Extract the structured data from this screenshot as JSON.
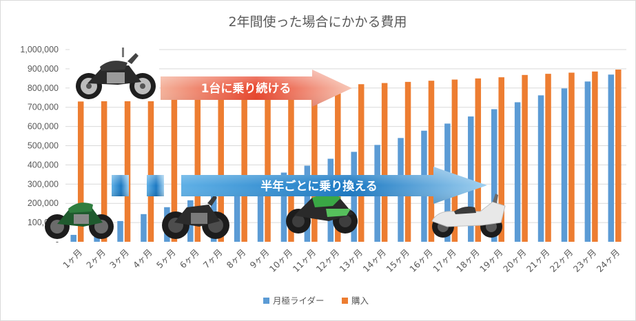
{
  "chart_data": {
    "type": "bar",
    "title": "2年間使った場合にかかる費用",
    "categories": [
      "1ヶ月",
      "2ヶ月",
      "3ヶ月",
      "4ヶ月",
      "5ヶ月",
      "6ヶ月",
      "7ヶ月",
      "8ヶ月",
      "9ヶ月",
      "10ヶ月",
      "11ヶ月",
      "12ヶ月",
      "13ヶ月",
      "14ヶ月",
      "15ヶ月",
      "16ヶ月",
      "17ヶ月",
      "18ヶ月",
      "19ヶ月",
      "20ヶ月",
      "21ヶ月",
      "22ヶ月",
      "23ヶ月",
      "24ヶ月"
    ],
    "ylim": [
      0,
      1000000
    ],
    "yticks": [
      "-",
      "100,000",
      "200,000",
      "300,000",
      "400,000",
      "500,000",
      "600,000",
      "700,000",
      "800,000",
      "900,000",
      "1,000,000"
    ],
    "grid": true,
    "legend_position": "bottom",
    "series": [
      {
        "name": "月極ライダー",
        "color": "#5b9bd5",
        "values": [
          36000,
          72000,
          108000,
          144000,
          180000,
          216000,
          252000,
          288000,
          324000,
          360000,
          396000,
          432000,
          468000,
          504000,
          540000,
          578000,
          615000,
          652000,
          690000,
          726000,
          762000,
          798000,
          834000,
          870000
        ]
      },
      {
        "name": "購入",
        "color": "#ed7d31",
        "values": [
          730000,
          738000,
          745000,
          752000,
          758000,
          765000,
          772000,
          778000,
          784000,
          790000,
          796000,
          802000,
          820000,
          826000,
          832000,
          838000,
          844000,
          850000,
          856000,
          868000,
          874000,
          880000,
          886000,
          896000
        ]
      }
    ],
    "annotations": [
      {
        "text": "1台に乗り続ける",
        "color": "#e8412c"
      },
      {
        "text": "半年ごとに乗り換える",
        "color": "#1f7fc4"
      }
    ]
  }
}
